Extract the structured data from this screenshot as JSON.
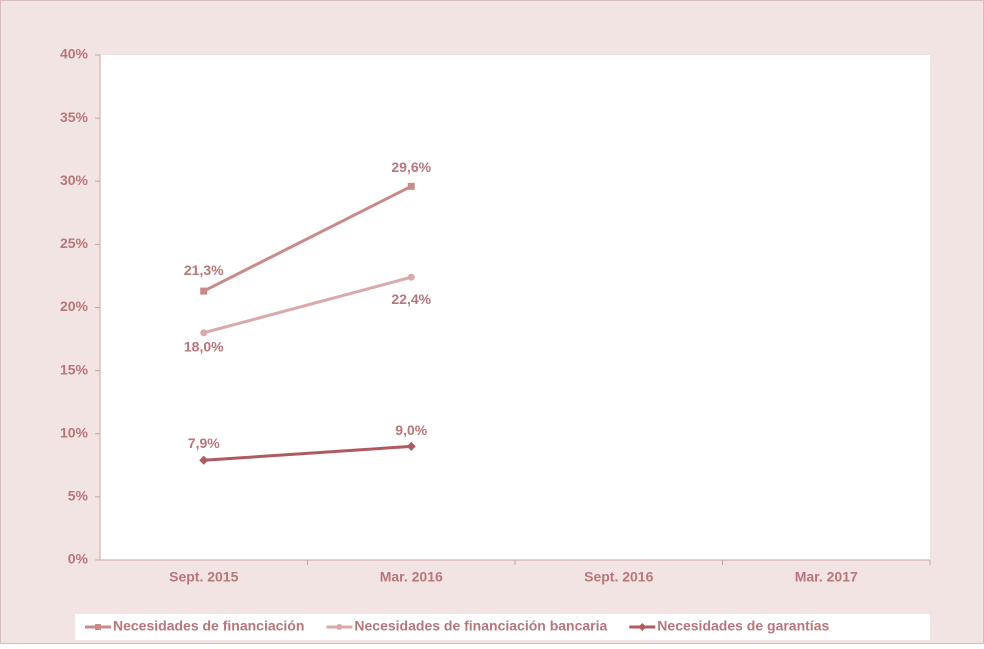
{
  "chart_data": {
    "type": "line",
    "categories": [
      "Sept. 2015",
      "Mar. 2016",
      "Sept. 2016",
      "Mar. 2017"
    ],
    "series": [
      {
        "name": "Necesidades de financiación",
        "color": "#c98a8a",
        "marker": "square",
        "values": [
          21.3,
          29.6,
          null,
          null
        ],
        "value_labels": [
          "21,3%",
          "29,6%",
          null,
          null
        ]
      },
      {
        "name": "Necesidades de financiación bancaria",
        "color": "#daa9a9",
        "marker": "circle",
        "values": [
          18.0,
          22.4,
          null,
          null
        ],
        "value_labels": [
          "18,0%",
          "22,4%",
          null,
          null
        ]
      },
      {
        "name": "Necesidades de garantías",
        "color": "#b05a60",
        "marker": "diamond",
        "values": [
          7.9,
          9.0,
          null,
          null
        ],
        "value_labels": [
          "7,9%",
          "9,0%",
          null,
          null
        ]
      }
    ],
    "ylim": [
      0,
      40
    ],
    "yticks": [
      {
        "value": 0,
        "label": "0%"
      },
      {
        "value": 5,
        "label": "5%"
      },
      {
        "value": 10,
        "label": "10%"
      },
      {
        "value": 15,
        "label": "15%"
      },
      {
        "value": 20,
        "label": "20%"
      },
      {
        "value": 25,
        "label": "25%"
      },
      {
        "value": 30,
        "label": "30%"
      },
      {
        "value": 35,
        "label": "35%"
      },
      {
        "value": 40,
        "label": "40%"
      }
    ],
    "grid": false,
    "legend": "bottom"
  }
}
